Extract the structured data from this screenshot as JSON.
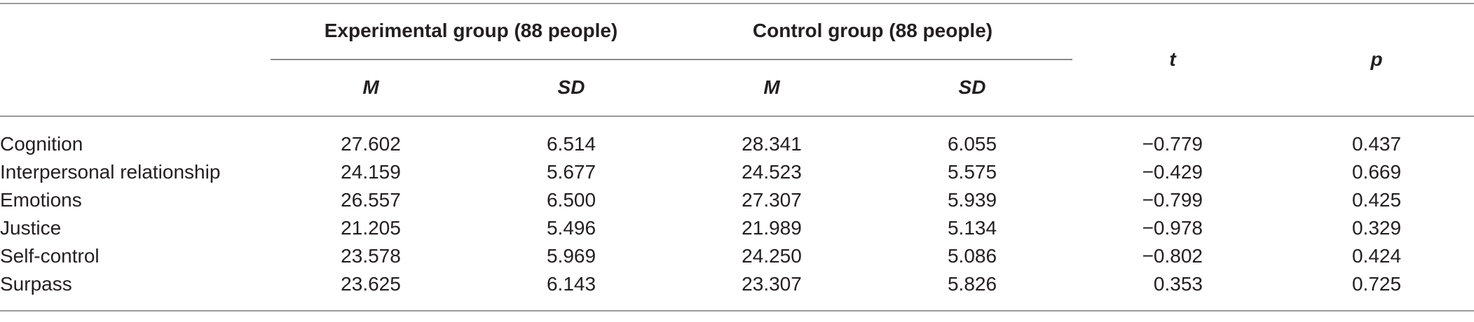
{
  "table": {
    "group_headers": [
      "Experimental group (88 people)",
      "Control group (88 people)"
    ],
    "sub_headers": [
      "M",
      "SD",
      "M",
      "SD"
    ],
    "stat_headers": [
      "t",
      "p"
    ],
    "rows": [
      {
        "label": "Cognition",
        "exp_m": "27.602",
        "exp_sd": "6.514",
        "ctl_m": "28.341",
        "ctl_sd": "6.055",
        "t": "−0.779",
        "p": "0.437"
      },
      {
        "label": "Interpersonal relationship",
        "exp_m": "24.159",
        "exp_sd": "5.677",
        "ctl_m": "24.523",
        "ctl_sd": "5.575",
        "t": "−0.429",
        "p": "0.669"
      },
      {
        "label": "Emotions",
        "exp_m": "26.557",
        "exp_sd": "6.500",
        "ctl_m": "27.307",
        "ctl_sd": "5.939",
        "t": "−0.799",
        "p": "0.425"
      },
      {
        "label": "Justice",
        "exp_m": "21.205",
        "exp_sd": "5.496",
        "ctl_m": "21.989",
        "ctl_sd": "5.134",
        "t": "−0.978",
        "p": "0.329"
      },
      {
        "label": "Self-control",
        "exp_m": "23.578",
        "exp_sd": "5.969",
        "ctl_m": "24.250",
        "ctl_sd": "5.086",
        "t": "−0.802",
        "p": "0.424"
      },
      {
        "label": "Surpass",
        "exp_m": "23.625",
        "exp_sd": "6.143",
        "ctl_m": "23.307",
        "ctl_sd": "5.826",
        "t": "0.353",
        "p": "0.725"
      }
    ]
  }
}
